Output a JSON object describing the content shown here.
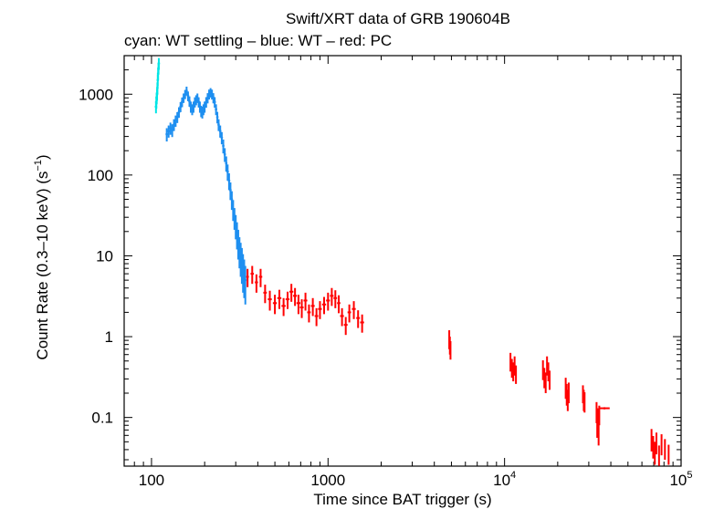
{
  "chart_data": {
    "type": "scatter",
    "title": "Swift/XRT data of GRB 190604B",
    "subtitle": "cyan: WT settling – blue: WT – red: PC",
    "xlabel": "Time since BAT trigger (s)",
    "ylabel_parts": [
      "Count Rate (0.3–10 keV) (s",
      "−1",
      ")"
    ],
    "xscale": "log",
    "yscale": "log",
    "xlim": [
      70,
      100000
    ],
    "ylim": [
      0.025,
      3000
    ],
    "x_ticks": [
      {
        "value": 100,
        "label": "100"
      },
      {
        "value": 1000,
        "label": "1000"
      },
      {
        "value": 10000,
        "label": "10",
        "exp": "4"
      },
      {
        "value": 100000,
        "label": "10",
        "exp": "5"
      }
    ],
    "y_ticks": [
      {
        "value": 0.1,
        "label": "0.1"
      },
      {
        "value": 1,
        "label": "1"
      },
      {
        "value": 10,
        "label": "10"
      },
      {
        "value": 100,
        "label": "100"
      },
      {
        "value": 1000,
        "label": "1000"
      }
    ],
    "series": [
      {
        "name": "WT settling",
        "color": "#00e5e5",
        "points": [
          [
            106,
            700,
            120
          ],
          [
            106.5,
            800,
            140
          ],
          [
            107,
            900,
            150
          ],
          [
            107.5,
            1000,
            170
          ],
          [
            108,
            1200,
            200
          ],
          [
            108.5,
            1500,
            250
          ],
          [
            109,
            1800,
            300
          ],
          [
            109.5,
            2100,
            350
          ],
          [
            110,
            2400,
            400
          ]
        ]
      },
      {
        "name": "WT",
        "color": "#1e8ff0",
        "points": [
          [
            122,
            320,
            60
          ],
          [
            125,
            350,
            60
          ],
          [
            128,
            380,
            65
          ],
          [
            131,
            360,
            65
          ],
          [
            134,
            420,
            70
          ],
          [
            137,
            470,
            75
          ],
          [
            140,
            520,
            80
          ],
          [
            143,
            600,
            90
          ],
          [
            146,
            700,
            100
          ],
          [
            149,
            800,
            110
          ],
          [
            152,
            900,
            120
          ],
          [
            155,
            1000,
            130
          ],
          [
            158,
            1100,
            140
          ],
          [
            161,
            950,
            130
          ],
          [
            164,
            820,
            120
          ],
          [
            167,
            700,
            110
          ],
          [
            170,
            650,
            100
          ],
          [
            173,
            700,
            110
          ],
          [
            176,
            800,
            115
          ],
          [
            179,
            850,
            120
          ],
          [
            182,
            900,
            120
          ],
          [
            185,
            800,
            115
          ],
          [
            188,
            700,
            110
          ],
          [
            191,
            620,
            100
          ],
          [
            194,
            600,
            100
          ],
          [
            197,
            650,
            100
          ],
          [
            200,
            700,
            110
          ],
          [
            204,
            800,
            120
          ],
          [
            208,
            900,
            130
          ],
          [
            212,
            1000,
            140
          ],
          [
            216,
            1050,
            140
          ],
          [
            220,
            1000,
            140
          ],
          [
            224,
            900,
            130
          ],
          [
            228,
            800,
            120
          ],
          [
            232,
            650,
            100
          ],
          [
            236,
            520,
            85
          ],
          [
            240,
            420,
            70
          ],
          [
            245,
            350,
            60
          ],
          [
            250,
            290,
            50
          ],
          [
            255,
            230,
            45
          ],
          [
            260,
            180,
            35
          ],
          [
            265,
            140,
            30
          ],
          [
            270,
            110,
            25
          ],
          [
            275,
            85,
            20
          ],
          [
            280,
            65,
            16
          ],
          [
            285,
            50,
            13
          ],
          [
            290,
            38,
            11
          ],
          [
            295,
            30,
            9
          ],
          [
            300,
            24,
            8
          ],
          [
            305,
            19,
            7
          ],
          [
            310,
            15,
            6
          ],
          [
            315,
            12,
            5
          ],
          [
            320,
            10,
            4.5
          ],
          [
            325,
            8.5,
            4
          ],
          [
            330,
            7,
            3.5
          ],
          [
            335,
            6,
            3
          ],
          [
            340,
            5,
            2.5
          ]
        ]
      },
      {
        "name": "PC",
        "color": "#ff0000",
        "points": [
          [
            350,
            5.5,
            1.4,
            6
          ],
          [
            372,
            6,
            1.5,
            8
          ],
          [
            393,
            4.7,
            1.2,
            8
          ],
          [
            415,
            5.5,
            1.4,
            9
          ],
          [
            440,
            3.5,
            0.9,
            10
          ],
          [
            468,
            2.9,
            0.8,
            12
          ],
          [
            500,
            2.6,
            0.7,
            13
          ],
          [
            530,
            3.0,
            0.8,
            14
          ],
          [
            560,
            2.4,
            0.6,
            15
          ],
          [
            590,
            2.9,
            0.7,
            15
          ],
          [
            620,
            3.6,
            0.9,
            16
          ],
          [
            650,
            3.2,
            0.8,
            16
          ],
          [
            680,
            2.6,
            0.7,
            17
          ],
          [
            710,
            2.3,
            0.6,
            17
          ],
          [
            745,
            2.8,
            0.7,
            18
          ],
          [
            780,
            2.0,
            0.5,
            18
          ],
          [
            820,
            2.4,
            0.6,
            20
          ],
          [
            860,
            1.8,
            0.45,
            20
          ],
          [
            900,
            2.2,
            0.55,
            22
          ],
          [
            950,
            2.5,
            0.6,
            25
          ],
          [
            1000,
            2.8,
            0.7,
            25
          ],
          [
            1050,
            3.2,
            0.8,
            25
          ],
          [
            1100,
            3.0,
            0.75,
            25
          ],
          [
            1150,
            2.6,
            0.65,
            25
          ],
          [
            1200,
            1.8,
            0.45,
            30
          ],
          [
            1260,
            1.4,
            0.35,
            30
          ],
          [
            1320,
            2.0,
            0.5,
            30
          ],
          [
            1400,
            2.2,
            0.55,
            35
          ],
          [
            1480,
            1.7,
            0.42,
            35
          ],
          [
            1560,
            1.5,
            0.38,
            40
          ],
          [
            4860,
            0.95,
            0.25,
            12
          ],
          [
            4900,
            0.8,
            0.2,
            12
          ],
          [
            4940,
            0.7,
            0.18,
            12
          ],
          [
            10800,
            0.5,
            0.13,
            40
          ],
          [
            11000,
            0.42,
            0.11,
            40
          ],
          [
            11200,
            0.38,
            0.1,
            40
          ],
          [
            11400,
            0.45,
            0.12,
            40
          ],
          [
            11600,
            0.35,
            0.09,
            40
          ],
          [
            16500,
            0.4,
            0.11,
            45
          ],
          [
            16800,
            0.32,
            0.09,
            45
          ],
          [
            17100,
            0.28,
            0.08,
            45
          ],
          [
            17400,
            0.45,
            0.12,
            45
          ],
          [
            17700,
            0.38,
            0.1,
            45
          ],
          [
            18000,
            0.3,
            0.08,
            45
          ],
          [
            22200,
            0.24,
            0.07,
            45
          ],
          [
            22500,
            0.2,
            0.06,
            45
          ],
          [
            22800,
            0.17,
            0.05,
            45
          ],
          [
            23100,
            0.21,
            0.06,
            45
          ],
          [
            27800,
            0.2,
            0.05,
            50
          ],
          [
            28100,
            0.17,
            0.05,
            50
          ],
          [
            28400,
            0.16,
            0.045,
            50
          ],
          [
            33200,
            0.12,
            0.035,
            40
          ],
          [
            33500,
            0.08,
            0.024,
            40
          ],
          [
            33800,
            0.1,
            0.03,
            40
          ],
          [
            34100,
            0.065,
            0.02,
            40
          ],
          [
            34400,
            0.11,
            0.03,
            40
          ],
          [
            36800,
            0.13,
            0.004,
            2600
          ],
          [
            68000,
            0.055,
            0.017,
            80
          ],
          [
            69500,
            0.045,
            0.014,
            80
          ],
          [
            71000,
            0.038,
            0.012,
            80
          ],
          [
            72500,
            0.05,
            0.015,
            80
          ],
          [
            75000,
            0.035,
            0.01,
            100
          ],
          [
            77500,
            0.048,
            0.014,
            100
          ],
          [
            81000,
            0.042,
            0.012,
            150
          ],
          [
            85000,
            0.036,
            0.01,
            200
          ]
        ]
      }
    ]
  }
}
